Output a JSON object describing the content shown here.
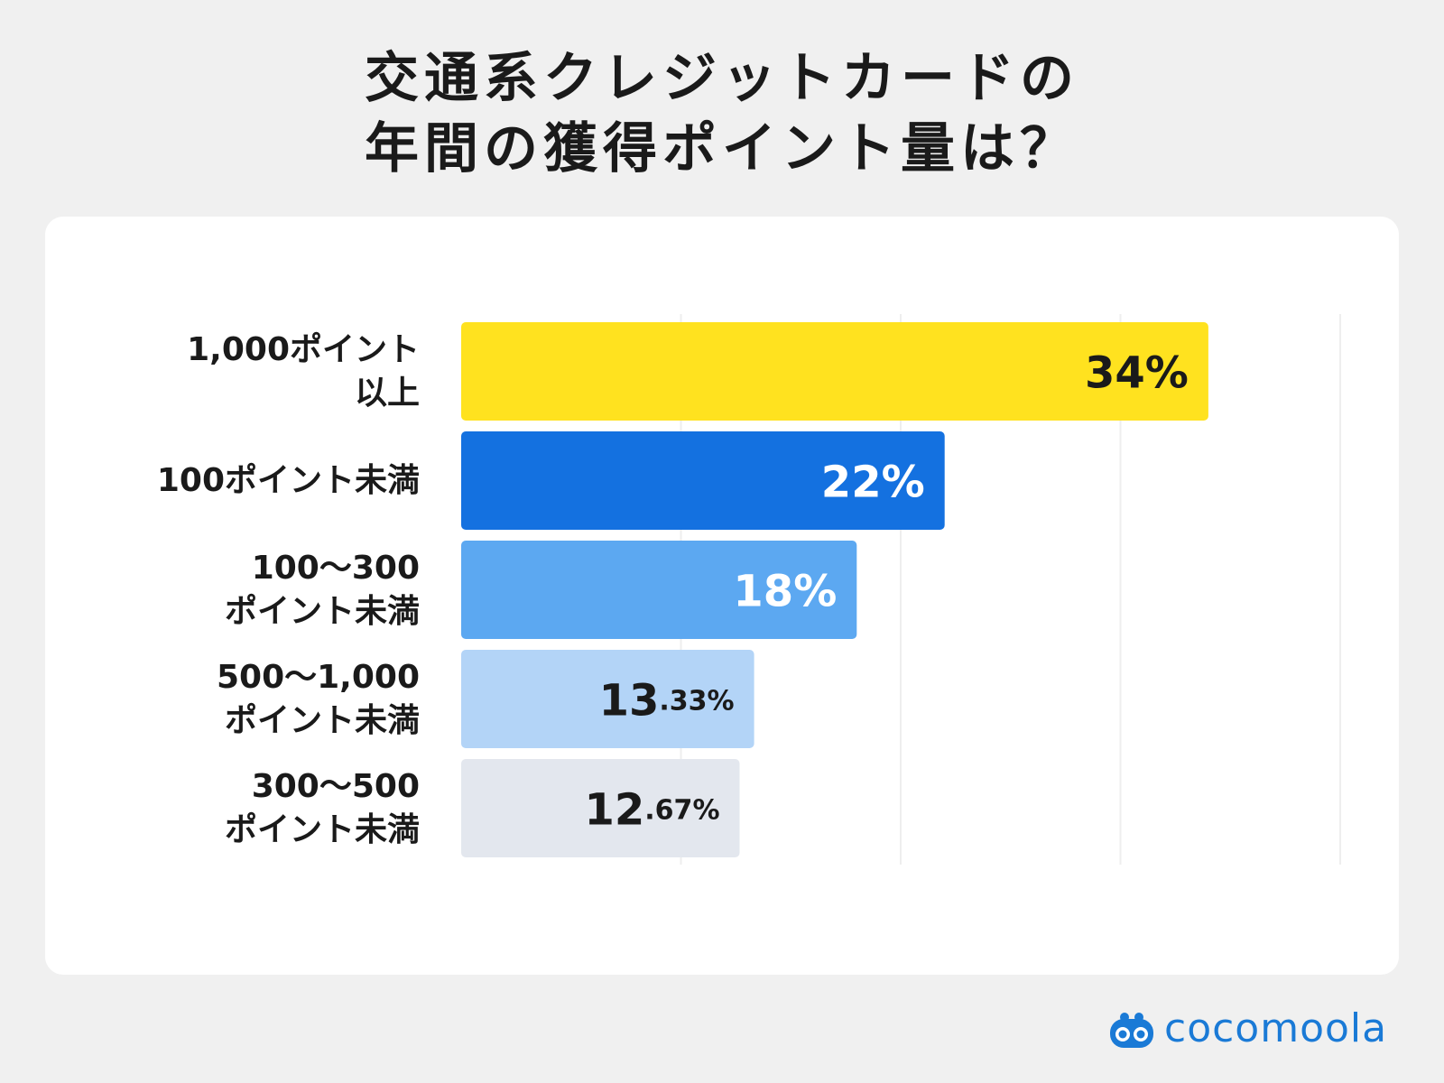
{
  "title": {
    "line1": "交通系クレジットカードの",
    "line2": "年間の獲得ポイント量は？"
  },
  "logo": {
    "text": "cocomoola",
    "icon": "cocomoola-logo-icon"
  },
  "colors": {
    "background": "#f0f0f0",
    "card": "#ffffff",
    "bars": [
      "#ffe21f",
      "#1471e0",
      "#5ca8f1",
      "#b3d4f7",
      "#e3e7ee"
    ],
    "value_text": [
      "#1a1a1a",
      "#ffffff",
      "#ffffff",
      "#1a1a1a",
      "#1a1a1a"
    ],
    "logo": "#1a7ad6",
    "grid": "#eeeeee"
  },
  "chart_data": {
    "type": "bar",
    "orientation": "horizontal",
    "categories": [
      [
        "1,000ポイント",
        "以上"
      ],
      [
        "100ポイント未満"
      ],
      [
        "100〜300",
        "ポイント未満"
      ],
      [
        "500〜1,000",
        "ポイント未満"
      ],
      [
        "300〜500",
        "ポイント未満"
      ]
    ],
    "values": [
      34,
      22,
      18,
      13.33,
      12.67
    ],
    "value_labels": [
      {
        "int": "34",
        "dec": "",
        "unit": "%"
      },
      {
        "int": "22",
        "dec": "",
        "unit": "%"
      },
      {
        "int": "18",
        "dec": "",
        "unit": "%"
      },
      {
        "int": "13",
        "dec": ".33",
        "unit": "%"
      },
      {
        "int": "12",
        "dec": ".67",
        "unit": "%"
      }
    ],
    "xlim": [
      0,
      40
    ],
    "grid": true,
    "title": "",
    "xlabel": "",
    "ylabel": ""
  }
}
